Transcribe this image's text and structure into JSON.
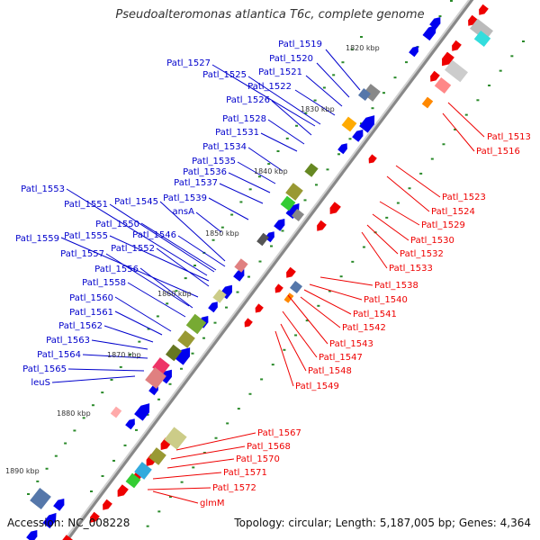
{
  "title": "Pseudoalteromonas atlantica T6c, complete genome",
  "accession": "Accession: NC_008228",
  "summary": "Topology: circular; Length: 5,187,005 bp; Genes: 4,364",
  "colors": {
    "plus_label": "#0000cc",
    "minus_label": "#ee0000",
    "plus_gene": "#0000ee",
    "minus_gene": "#ee0000",
    "backbone": "#555555",
    "tick": "#2a8a2a"
  },
  "kbp_ticks": [
    "1820 kbp",
    "1830 kbp",
    "1840 kbp",
    "1850 kbp",
    "1860 kbp",
    "1870 kbp",
    "1880 kbp",
    "1890 kbp"
  ],
  "plus_labels": [
    "Patl_1519",
    "Patl_1520",
    "Patl_1521",
    "Patl_1522",
    "Patl_1527",
    "Patl_1525",
    "Patl_1526",
    "Patl_1528",
    "Patl_1531",
    "Patl_1534",
    "Patl_1535",
    "Patl_1536",
    "Patl_1537",
    "Patl_1553",
    "Patl_1545",
    "Patl_1539",
    "Patl_1551",
    "ansA",
    "Patl_1550",
    "Patl_1555",
    "Patl_1546",
    "Patl_1559",
    "Patl_1552",
    "Patl_1557",
    "Patl_1556",
    "Patl_1558",
    "Patl_1560",
    "Patl_1561",
    "Patl_1562",
    "Patl_1563",
    "Patl_1564",
    "Patl_1565",
    "leuS"
  ],
  "minus_labels": [
    "Patl_1513",
    "Patl_1516",
    "Patl_1523",
    "Patl_1524",
    "Patl_1529",
    "Patl_1530",
    "Patl_1532",
    "Patl_1533",
    "Patl_1538",
    "Patl_1540",
    "Patl_1541",
    "Patl_1542",
    "Patl_1543",
    "Patl_1547",
    "Patl_1548",
    "Patl_1549",
    "Patl_1567",
    "Patl_1568",
    "Patl_1570",
    "Patl_1571",
    "Patl_1572",
    "glmM"
  ]
}
